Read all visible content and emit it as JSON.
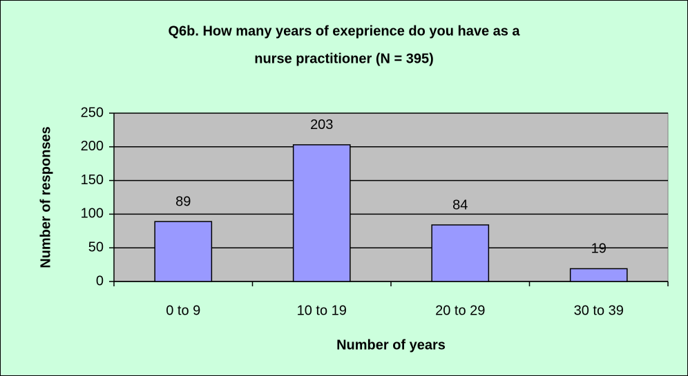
{
  "chart_data": {
    "type": "bar",
    "title": [
      "Q6b. How many years of exeprience do you have as a",
      "nurse practitioner (N = 395)"
    ],
    "x_label": "Number of years",
    "y_label": "Number of responses",
    "categories": [
      "0 to 9",
      "10 to 19",
      "20 to 29",
      "30 to 39"
    ],
    "values": [
      89,
      203,
      84,
      19
    ],
    "color": "#9999ff",
    "ylim": [
      0,
      250
    ],
    "yticks": [
      0,
      50,
      100,
      150,
      200,
      250
    ],
    "grid": true
  }
}
